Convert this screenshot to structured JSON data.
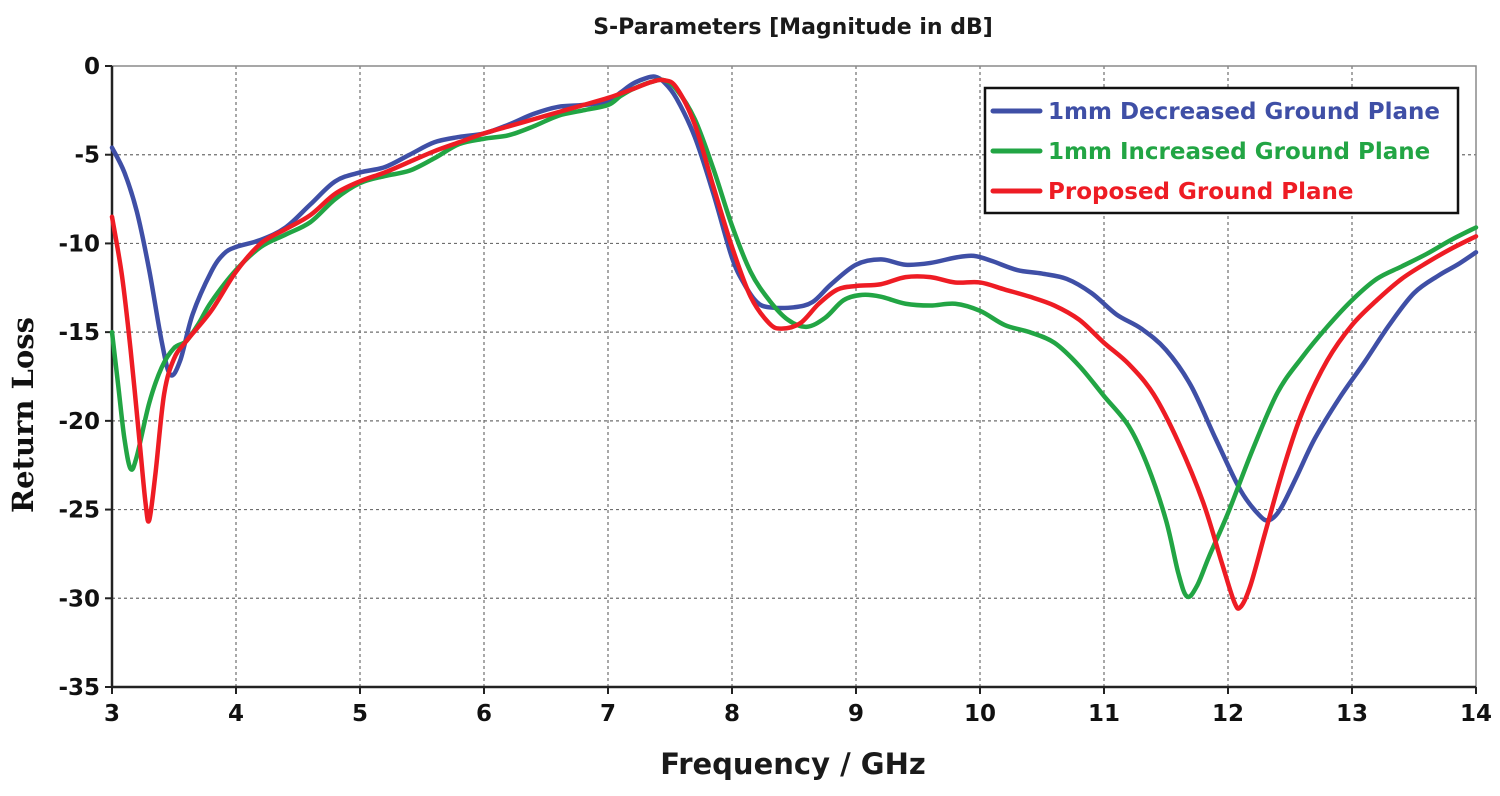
{
  "chart_data": {
    "type": "line",
    "title": "S-Parameters [Magnitude in dB]",
    "xlabel": "Frequency / GHz",
    "ylabel": "Return Loss",
    "xlim": [
      3,
      14
    ],
    "ylim": [
      -35,
      0
    ],
    "xticks": [
      3,
      4,
      5,
      6,
      7,
      8,
      9,
      10,
      11,
      12,
      13,
      14
    ],
    "xtick_labels": [
      "3",
      "4",
      "5",
      "6",
      "7",
      "8",
      "9",
      "10",
      "11",
      "12",
      "13",
      "14"
    ],
    "yticks": [
      0,
      -5,
      -10,
      -15,
      -20,
      -25,
      -30,
      -35
    ],
    "ytick_labels": [
      "0",
      "-5",
      "-10",
      "-15",
      "-20",
      "-25",
      "-30",
      "-35"
    ],
    "grid": true,
    "legend_position": "top-right",
    "series": [
      {
        "name": "1mm Decreased Ground Plane",
        "color": "#3f4fa6",
        "points": [
          [
            3.0,
            -4.6
          ],
          [
            3.1,
            -6.0
          ],
          [
            3.2,
            -8.2
          ],
          [
            3.3,
            -11.5
          ],
          [
            3.4,
            -15.5
          ],
          [
            3.47,
            -17.4
          ],
          [
            3.55,
            -16.6
          ],
          [
            3.65,
            -14.0
          ],
          [
            3.8,
            -11.6
          ],
          [
            3.9,
            -10.6
          ],
          [
            4.0,
            -10.2
          ],
          [
            4.2,
            -9.8
          ],
          [
            4.4,
            -9.1
          ],
          [
            4.6,
            -7.8
          ],
          [
            4.8,
            -6.5
          ],
          [
            5.0,
            -6.0
          ],
          [
            5.2,
            -5.7
          ],
          [
            5.4,
            -5.0
          ],
          [
            5.6,
            -4.3
          ],
          [
            5.8,
            -4.0
          ],
          [
            6.0,
            -3.8
          ],
          [
            6.2,
            -3.3
          ],
          [
            6.4,
            -2.7
          ],
          [
            6.6,
            -2.3
          ],
          [
            6.8,
            -2.2
          ],
          [
            7.0,
            -2.0
          ],
          [
            7.1,
            -1.5
          ],
          [
            7.2,
            -1.0
          ],
          [
            7.3,
            -0.7
          ],
          [
            7.38,
            -0.6
          ],
          [
            7.45,
            -0.9
          ],
          [
            7.55,
            -1.8
          ],
          [
            7.7,
            -4.0
          ],
          [
            7.85,
            -7.2
          ],
          [
            8.0,
            -10.8
          ],
          [
            8.1,
            -12.3
          ],
          [
            8.2,
            -13.3
          ],
          [
            8.3,
            -13.6
          ],
          [
            8.5,
            -13.6
          ],
          [
            8.65,
            -13.3
          ],
          [
            8.8,
            -12.3
          ],
          [
            9.0,
            -11.2
          ],
          [
            9.2,
            -10.9
          ],
          [
            9.4,
            -11.2
          ],
          [
            9.6,
            -11.1
          ],
          [
            9.8,
            -10.8
          ],
          [
            9.95,
            -10.7
          ],
          [
            10.1,
            -11.0
          ],
          [
            10.3,
            -11.5
          ],
          [
            10.5,
            -11.7
          ],
          [
            10.7,
            -12.0
          ],
          [
            10.9,
            -12.8
          ],
          [
            11.1,
            -14.0
          ],
          [
            11.3,
            -14.8
          ],
          [
            11.5,
            -16.0
          ],
          [
            11.7,
            -18.0
          ],
          [
            11.9,
            -21.0
          ],
          [
            12.1,
            -23.9
          ],
          [
            12.25,
            -25.3
          ],
          [
            12.33,
            -25.6
          ],
          [
            12.42,
            -25.0
          ],
          [
            12.55,
            -23.2
          ],
          [
            12.7,
            -21.0
          ],
          [
            12.9,
            -18.7
          ],
          [
            13.1,
            -16.7
          ],
          [
            13.3,
            -14.6
          ],
          [
            13.5,
            -12.8
          ],
          [
            13.7,
            -11.8
          ],
          [
            13.85,
            -11.2
          ],
          [
            14.0,
            -10.5
          ]
        ]
      },
      {
        "name": "1mm Increased Ground Plane",
        "color": "#22a544",
        "points": [
          [
            3.0,
            -15.0
          ],
          [
            3.05,
            -18.0
          ],
          [
            3.1,
            -21.0
          ],
          [
            3.15,
            -22.7
          ],
          [
            3.2,
            -22.0
          ],
          [
            3.3,
            -19.0
          ],
          [
            3.4,
            -17.0
          ],
          [
            3.5,
            -15.9
          ],
          [
            3.6,
            -15.5
          ],
          [
            3.7,
            -14.5
          ],
          [
            3.8,
            -13.3
          ],
          [
            4.0,
            -11.5
          ],
          [
            4.2,
            -10.2
          ],
          [
            4.4,
            -9.5
          ],
          [
            4.6,
            -8.8
          ],
          [
            4.8,
            -7.5
          ],
          [
            5.0,
            -6.6
          ],
          [
            5.2,
            -6.2
          ],
          [
            5.4,
            -5.9
          ],
          [
            5.6,
            -5.2
          ],
          [
            5.8,
            -4.4
          ],
          [
            6.0,
            -4.1
          ],
          [
            6.2,
            -3.9
          ],
          [
            6.4,
            -3.4
          ],
          [
            6.6,
            -2.8
          ],
          [
            6.8,
            -2.5
          ],
          [
            7.0,
            -2.2
          ],
          [
            7.1,
            -1.7
          ],
          [
            7.2,
            -1.3
          ],
          [
            7.35,
            -0.9
          ],
          [
            7.45,
            -0.8
          ],
          [
            7.55,
            -1.3
          ],
          [
            7.7,
            -3.0
          ],
          [
            7.85,
            -5.8
          ],
          [
            8.0,
            -9.0
          ],
          [
            8.15,
            -11.6
          ],
          [
            8.3,
            -13.2
          ],
          [
            8.45,
            -14.3
          ],
          [
            8.6,
            -14.7
          ],
          [
            8.75,
            -14.2
          ],
          [
            8.9,
            -13.2
          ],
          [
            9.05,
            -12.9
          ],
          [
            9.2,
            -13.0
          ],
          [
            9.4,
            -13.4
          ],
          [
            9.6,
            -13.5
          ],
          [
            9.8,
            -13.4
          ],
          [
            10.0,
            -13.8
          ],
          [
            10.2,
            -14.6
          ],
          [
            10.4,
            -15.0
          ],
          [
            10.6,
            -15.6
          ],
          [
            10.8,
            -16.9
          ],
          [
            11.0,
            -18.6
          ],
          [
            11.2,
            -20.3
          ],
          [
            11.35,
            -22.5
          ],
          [
            11.5,
            -25.6
          ],
          [
            11.6,
            -28.6
          ],
          [
            11.67,
            -29.9
          ],
          [
            11.75,
            -29.3
          ],
          [
            11.85,
            -27.6
          ],
          [
            12.0,
            -25.2
          ],
          [
            12.2,
            -21.6
          ],
          [
            12.4,
            -18.4
          ],
          [
            12.6,
            -16.4
          ],
          [
            12.8,
            -14.7
          ],
          [
            13.0,
            -13.2
          ],
          [
            13.2,
            -12.0
          ],
          [
            13.4,
            -11.3
          ],
          [
            13.6,
            -10.6
          ],
          [
            13.8,
            -9.8
          ],
          [
            14.0,
            -9.1
          ]
        ]
      },
      {
        "name": "Proposed Ground Plane",
        "color": "#ee1c24",
        "points": [
          [
            3.0,
            -8.5
          ],
          [
            3.08,
            -11.8
          ],
          [
            3.15,
            -16.0
          ],
          [
            3.22,
            -21.0
          ],
          [
            3.27,
            -24.6
          ],
          [
            3.3,
            -25.6
          ],
          [
            3.35,
            -23.0
          ],
          [
            3.42,
            -18.5
          ],
          [
            3.5,
            -16.5
          ],
          [
            3.6,
            -15.5
          ],
          [
            3.8,
            -13.8
          ],
          [
            4.0,
            -11.6
          ],
          [
            4.2,
            -10.0
          ],
          [
            4.4,
            -9.2
          ],
          [
            4.6,
            -8.4
          ],
          [
            4.8,
            -7.2
          ],
          [
            5.0,
            -6.5
          ],
          [
            5.2,
            -6.0
          ],
          [
            5.4,
            -5.4
          ],
          [
            5.6,
            -4.8
          ],
          [
            5.8,
            -4.3
          ],
          [
            6.0,
            -3.8
          ],
          [
            6.2,
            -3.4
          ],
          [
            6.4,
            -3.0
          ],
          [
            6.6,
            -2.6
          ],
          [
            6.8,
            -2.2
          ],
          [
            7.0,
            -1.8
          ],
          [
            7.2,
            -1.3
          ],
          [
            7.35,
            -0.9
          ],
          [
            7.45,
            -0.8
          ],
          [
            7.55,
            -1.2
          ],
          [
            7.7,
            -3.3
          ],
          [
            7.85,
            -6.8
          ],
          [
            8.0,
            -10.2
          ],
          [
            8.15,
            -13.0
          ],
          [
            8.3,
            -14.5
          ],
          [
            8.4,
            -14.8
          ],
          [
            8.55,
            -14.5
          ],
          [
            8.7,
            -13.4
          ],
          [
            8.85,
            -12.6
          ],
          [
            9.0,
            -12.4
          ],
          [
            9.2,
            -12.3
          ],
          [
            9.4,
            -11.9
          ],
          [
            9.6,
            -11.9
          ],
          [
            9.8,
            -12.2
          ],
          [
            10.0,
            -12.2
          ],
          [
            10.2,
            -12.6
          ],
          [
            10.4,
            -13.0
          ],
          [
            10.6,
            -13.5
          ],
          [
            10.8,
            -14.3
          ],
          [
            11.0,
            -15.6
          ],
          [
            11.2,
            -16.8
          ],
          [
            11.4,
            -18.5
          ],
          [
            11.6,
            -21.2
          ],
          [
            11.8,
            -24.6
          ],
          [
            11.95,
            -28.0
          ],
          [
            12.05,
            -30.2
          ],
          [
            12.1,
            -30.5
          ],
          [
            12.18,
            -29.3
          ],
          [
            12.3,
            -26.3
          ],
          [
            12.45,
            -22.6
          ],
          [
            12.6,
            -19.5
          ],
          [
            12.8,
            -16.6
          ],
          [
            13.0,
            -14.6
          ],
          [
            13.2,
            -13.2
          ],
          [
            13.4,
            -12.0
          ],
          [
            13.6,
            -11.1
          ],
          [
            13.8,
            -10.3
          ],
          [
            14.0,
            -9.6
          ]
        ]
      }
    ]
  }
}
